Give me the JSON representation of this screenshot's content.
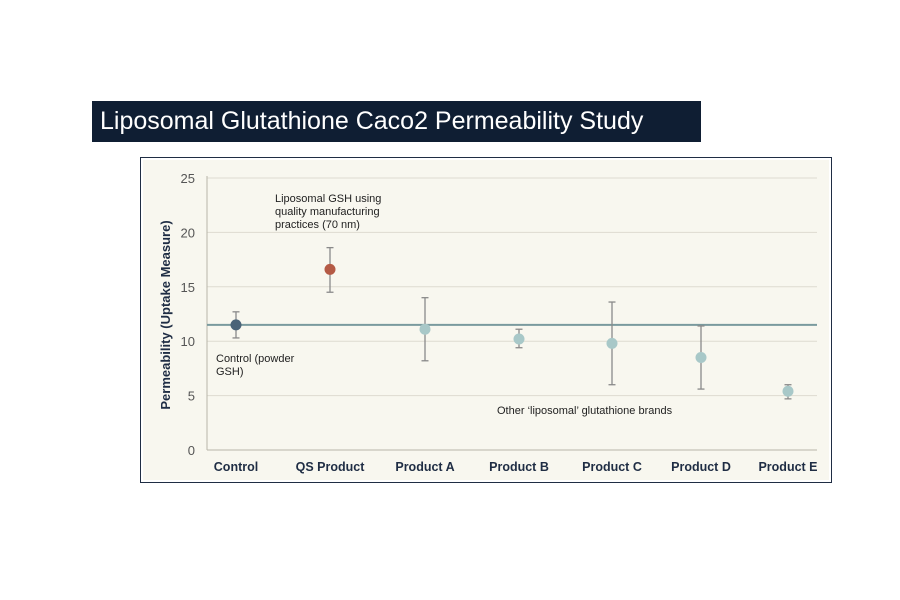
{
  "slide": {
    "title": "Liposomal Glutathione Caco2 Permeability Study"
  },
  "colors": {
    "title_bg": "#0f1e33",
    "plot_bg": "#f8f7ef",
    "control_point": "#4a6378",
    "qs_point": "#b45a45",
    "other_point": "#a8c8c8",
    "error_bar": "#8a8a8a",
    "reference_line": "#7a9a9e"
  },
  "chart_data": {
    "type": "scatter",
    "title": "",
    "xlabel": "",
    "ylabel": "Permeability (Uptake Measure)",
    "ylim": [
      0,
      25
    ],
    "yticks": [
      0,
      5,
      10,
      15,
      20,
      25
    ],
    "grid": true,
    "categories": [
      "Control",
      "QS Product",
      "Product A",
      "Product B",
      "Product C",
      "Product D",
      "Product E"
    ],
    "series": [
      {
        "values": [
          11.5,
          16.6,
          11.1,
          10.2,
          9.8,
          8.5,
          5.4
        ],
        "error_low": [
          10.3,
          14.5,
          8.2,
          9.4,
          6.0,
          5.6,
          4.7
        ],
        "error_high": [
          12.7,
          18.6,
          14.0,
          11.1,
          13.6,
          11.4,
          6.0
        ]
      }
    ],
    "reference_line": 11.5,
    "annotations": [
      {
        "lines": [
          "Liposomal GSH using",
          "quality manufacturing",
          "practices (70 nm)"
        ]
      },
      {
        "lines": [
          "Control (powder",
          "GSH)"
        ]
      },
      {
        "lines": [
          "Other ‘liposomal’ glutathione brands"
        ]
      }
    ]
  }
}
